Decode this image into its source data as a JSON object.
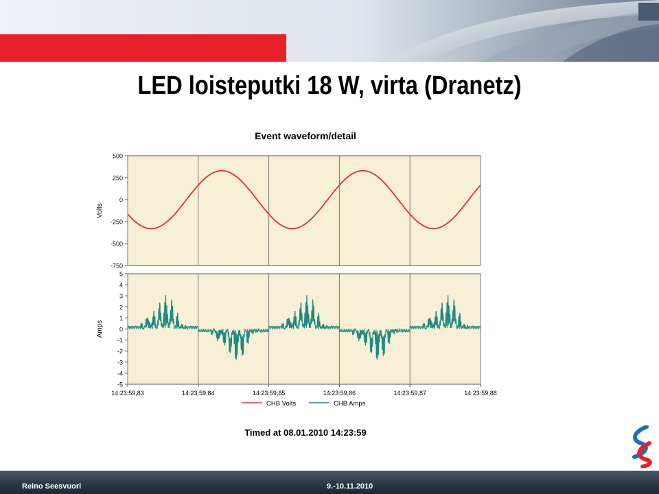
{
  "slide": {
    "title": "LED loisteputki 18 W, virta (Dranetz)",
    "timed": "Timed at 08.01.2010 14:23:59",
    "footer_left": "Reino Seesvuori",
    "footer_right": "9.-10.11.2010"
  },
  "colors": {
    "volts": "#e03030",
    "amps": "#1f8a80",
    "plot_bg": "#f7efd6",
    "banner_red": "#e8202a",
    "footer": "#2a3444"
  },
  "chart_data": {
    "type": "line",
    "title": "Event waveform/detail",
    "x_ticks": [
      "14:23:59,83",
      "14:23:59,84",
      "14:23:59,85",
      "14:23:59,86",
      "14:23:59,87",
      "14:23:59,88"
    ],
    "xlim_ms": [
      0,
      50
    ],
    "legend_position": "bottom",
    "grid": true,
    "panels": [
      {
        "name": "volts",
        "ylabel": "Volts",
        "ylim": [
          -750,
          500
        ],
        "yticks": [
          500,
          250,
          0,
          -250,
          -500,
          -750
        ],
        "series": {
          "name": "CHB Volts",
          "waveform": "sine",
          "amplitude": 330,
          "frequency_hz": 50,
          "phase_deg": 210
        }
      },
      {
        "name": "amps",
        "ylabel": "Amps",
        "ylim": [
          -5,
          5
        ],
        "yticks": [
          5,
          4,
          3,
          2,
          1,
          0,
          -1,
          -2,
          -3,
          -4,
          -5
        ],
        "series": {
          "name": "CHB Amps",
          "waveform": "pulsed",
          "peak": 3.2,
          "frequency_hz": 50
        }
      }
    ]
  }
}
